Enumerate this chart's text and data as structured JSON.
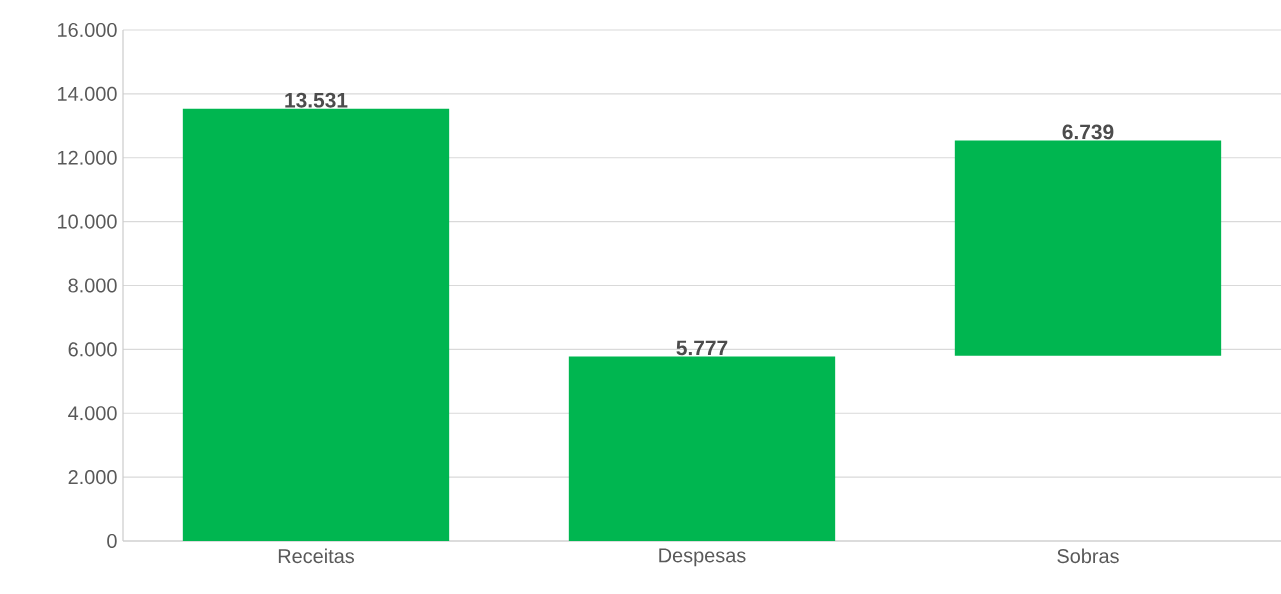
{
  "chart_data": {
    "type": "bar",
    "categories": [
      "Receitas",
      "Despesas",
      "Sobras"
    ],
    "values": [
      13531,
      5777,
      6739
    ],
    "base": [
      0,
      0,
      5800
    ],
    "value_labels": [
      "13.531",
      "5.777",
      "6.739"
    ],
    "color": "#00b650",
    "ylim": [
      0,
      16000
    ],
    "yticks": [
      {
        "value": 0,
        "label": "0"
      },
      {
        "value": 2000,
        "label": "2.000"
      },
      {
        "value": 4000,
        "label": "4.000"
      },
      {
        "value": 6000,
        "label": "6.000"
      },
      {
        "value": 8000,
        "label": "8.000"
      },
      {
        "value": 10000,
        "label": "10.000"
      },
      {
        "value": 12000,
        "label": "12.000"
      },
      {
        "value": 14000,
        "label": "14.000"
      },
      {
        "value": 16000,
        "label": "16.000"
      }
    ],
    "grid": "y"
  }
}
